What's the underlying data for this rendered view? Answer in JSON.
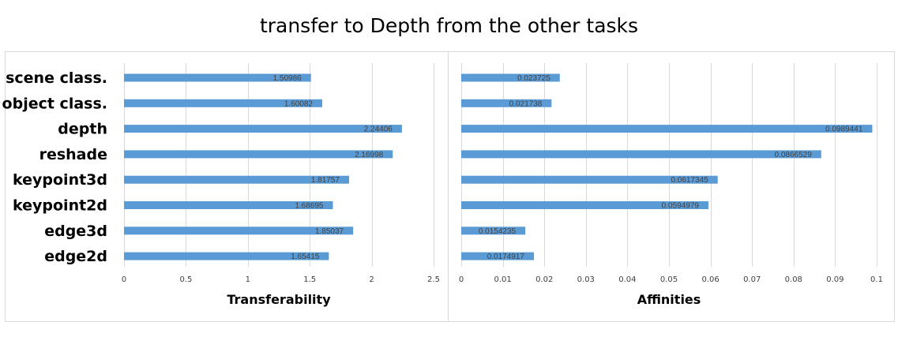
{
  "title": "transfer to Depth from the other tasks",
  "colors": {
    "bar": "#5b9bd5",
    "grid": "#d9d9d9",
    "frame": "#d9d9d9",
    "label_text": "#404040",
    "category_text": "#000000"
  },
  "chart_data": [
    {
      "type": "bar",
      "orientation": "horizontal",
      "xlabel": "Transferability",
      "categories": [
        "scene class.",
        "object class.",
        "depth",
        "reshade",
        "keypoint3d",
        "keypoint2d",
        "edge3d",
        "edge2d"
      ],
      "values": [
        1.50986,
        1.60082,
        2.24406,
        2.16998,
        1.81757,
        1.68695,
        1.85037,
        1.65415
      ],
      "value_labels": [
        "1.50986",
        "1.60082",
        "2.24406",
        "2.16998",
        "1.81757",
        "1.68695",
        "1.85037",
        "1.65415"
      ],
      "xlim": [
        0,
        2.5
      ],
      "xticks": [
        0,
        0.5,
        1,
        1.5,
        2,
        2.5
      ],
      "xtick_labels": [
        "0",
        "0.5",
        "1",
        "1.5",
        "2",
        "2.5"
      ],
      "grid": true
    },
    {
      "type": "bar",
      "orientation": "horizontal",
      "xlabel": "Affinities",
      "categories": [
        "scene class.",
        "object class.",
        "depth",
        "reshade",
        "keypoint3d",
        "keypoint2d",
        "edge3d",
        "edge2d"
      ],
      "values": [
        0.023725,
        0.021738,
        0.0989441,
        0.0866529,
        0.0617345,
        0.0594979,
        0.0154235,
        0.0174917
      ],
      "value_labels": [
        "0.023725",
        "0.021738",
        "0.0989441",
        "0.0866529",
        "0.0617345",
        "0.0594979",
        "0.0154235",
        "0.0174917"
      ],
      "xlim": [
        0,
        0.1
      ],
      "xticks": [
        0,
        0.01,
        0.02,
        0.03,
        0.04,
        0.05,
        0.06,
        0.07,
        0.08,
        0.09,
        0.1
      ],
      "xtick_labels": [
        "0",
        "0.01",
        "0.02",
        "0.03",
        "0.04",
        "0.05",
        "0.06",
        "0.07",
        "0.08",
        "0.09",
        "0.1"
      ],
      "grid": true
    }
  ]
}
